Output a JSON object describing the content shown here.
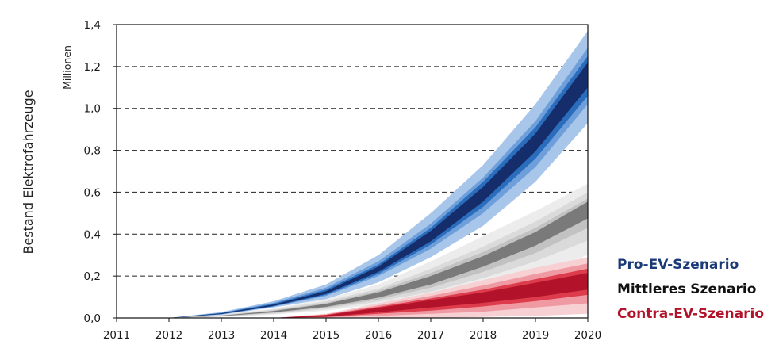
{
  "chart_data": {
    "type": "area",
    "title": "",
    "ylabel": "Bestand Elektrofahrzeuge",
    "yunit": "Millionen",
    "xlabel": "",
    "x": [
      2011,
      2012,
      2013,
      2014,
      2015,
      2016,
      2017,
      2018,
      2019,
      2020
    ],
    "xticks": [
      "2011",
      "2012",
      "2013",
      "2014",
      "2015",
      "2016",
      "2017",
      "2018",
      "2019",
      "2020"
    ],
    "yticks": [
      "0,0",
      "0,2",
      "0,4",
      "0,6",
      "0,8",
      "1,0",
      "1,2",
      "1,4"
    ],
    "ylim": [
      0,
      1.4
    ],
    "grid": "horizontal dashed",
    "legend_position": "right",
    "series": [
      {
        "name": "Pro-EV-Szenario",
        "color": "#1b3a78",
        "x": [
          2012,
          2013,
          2014,
          2015,
          2016,
          2017,
          2018,
          2019,
          2020
        ],
        "median": [
          0.0,
          0.02,
          0.06,
          0.12,
          0.23,
          0.39,
          0.59,
          0.84,
          1.16
        ],
        "bands": [
          {
            "lower": [
              0.0,
              0.015,
              0.05,
              0.09,
              0.17,
              0.29,
              0.44,
              0.65,
              0.93
            ],
            "upper": [
              0.0,
              0.028,
              0.08,
              0.16,
              0.3,
              0.5,
              0.73,
              1.02,
              1.37
            ],
            "color": "#a7c6ea"
          },
          {
            "lower": [
              0.0,
              0.017,
              0.054,
              0.105,
              0.2,
              0.33,
              0.5,
              0.72,
              1.02
            ],
            "upper": [
              0.0,
              0.025,
              0.073,
              0.145,
              0.27,
              0.45,
              0.67,
              0.94,
              1.29
            ],
            "color": "#6f9fda"
          },
          {
            "lower": [
              0.0,
              0.018,
              0.056,
              0.11,
              0.21,
              0.35,
              0.53,
              0.76,
              1.06
            ],
            "upper": [
              0.0,
              0.023,
              0.068,
              0.135,
              0.255,
              0.43,
              0.65,
              0.91,
              1.25
            ],
            "color": "#2b6dbd"
          },
          {
            "lower": [
              0.0,
              0.019,
              0.058,
              0.115,
              0.22,
              0.365,
              0.555,
              0.795,
              1.1
            ],
            "upper": [
              0.0,
              0.022,
              0.064,
              0.128,
              0.245,
              0.415,
              0.625,
              0.88,
              1.22
            ],
            "color": "#152e6b"
          }
        ]
      },
      {
        "name": "Mittleres Szenario",
        "color": "#777777",
        "x": [
          2012,
          2013,
          2014,
          2015,
          2016,
          2017,
          2018,
          2019,
          2020
        ],
        "median": [
          0.0,
          0.01,
          0.03,
          0.06,
          0.11,
          0.18,
          0.27,
          0.38,
          0.52
        ],
        "bands": [
          {
            "lower": [
              0.0,
              0.005,
              0.016,
              0.035,
              0.065,
              0.1,
              0.15,
              0.21,
              0.3
            ],
            "upper": [
              0.0,
              0.016,
              0.045,
              0.09,
              0.16,
              0.27,
              0.39,
              0.51,
              0.64
            ],
            "color": "#ececec"
          },
          {
            "lower": [
              0.0,
              0.007,
              0.02,
              0.042,
              0.078,
              0.125,
              0.19,
              0.27,
              0.37
            ],
            "upper": [
              0.0,
              0.014,
              0.04,
              0.08,
              0.14,
              0.235,
              0.34,
              0.46,
              0.6
            ],
            "color": "#dadada"
          },
          {
            "lower": [
              0.0,
              0.008,
              0.024,
              0.048,
              0.088,
              0.145,
              0.22,
              0.31,
              0.43
            ],
            "upper": [
              0.0,
              0.012,
              0.036,
              0.072,
              0.13,
              0.215,
              0.315,
              0.43,
              0.57
            ],
            "color": "#c2c2c2"
          },
          {
            "lower": [
              0.0,
              0.009,
              0.027,
              0.053,
              0.097,
              0.16,
              0.245,
              0.345,
              0.475
            ],
            "upper": [
              0.0,
              0.011,
              0.033,
              0.067,
              0.122,
              0.2,
              0.295,
              0.41,
              0.555
            ],
            "color": "#7a7a7a"
          }
        ]
      },
      {
        "name": "Contra-EV-Szenario",
        "color": "#b3132a",
        "x": [
          2014,
          2015,
          2016,
          2017,
          2018,
          2019,
          2020
        ],
        "median": [
          0.0,
          0.01,
          0.04,
          0.07,
          0.1,
          0.14,
          0.18
        ],
        "bands": [
          {
            "lower": [
              0.0,
              0.0,
              0.0,
              0.0,
              0.005,
              0.01,
              0.02
            ],
            "upper": [
              0.0,
              0.02,
              0.07,
              0.12,
              0.18,
              0.24,
              0.29
            ],
            "color": "#f7d0d3"
          },
          {
            "lower": [
              0.0,
              0.002,
              0.01,
              0.02,
              0.03,
              0.05,
              0.07
            ],
            "upper": [
              0.0,
              0.017,
              0.06,
              0.105,
              0.155,
              0.21,
              0.26
            ],
            "color": "#ef9aa2"
          },
          {
            "lower": [
              0.0,
              0.004,
              0.02,
              0.035,
              0.055,
              0.08,
              0.11
            ],
            "upper": [
              0.0,
              0.015,
              0.053,
              0.093,
              0.135,
              0.185,
              0.235
            ],
            "color": "#dd3c4c"
          },
          {
            "lower": [
              0.0,
              0.006,
              0.027,
              0.05,
              0.072,
              0.1,
              0.135
            ],
            "upper": [
              0.0,
              0.013,
              0.048,
              0.085,
              0.122,
              0.168,
              0.215
            ],
            "color": "#b3132a"
          }
        ]
      }
    ]
  },
  "legend": [
    {
      "label": "Pro-EV-Szenario",
      "color": "#1b3a78"
    },
    {
      "label": "Mittleres Szenario",
      "color": "#111111"
    },
    {
      "label": "Contra-EV-Szenario",
      "color": "#b3132a"
    }
  ]
}
